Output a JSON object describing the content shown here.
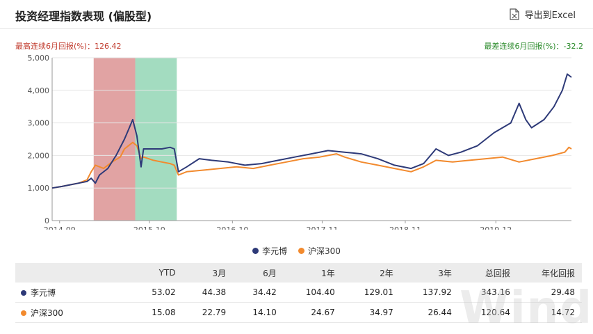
{
  "header": {
    "title": "投资经理指数表现 (偏股型)",
    "export_label": "导出到Excel"
  },
  "annotations": {
    "best": "最高连续6月回报(%)：126.42",
    "worst": "最差连续6月回报(%)：-32.2"
  },
  "colors": {
    "series1": "#2e3a78",
    "series2": "#f28a2e",
    "best_band": "#e1a3a3",
    "worst_band": "#a3dcc0",
    "best_text": "#c0392b",
    "worst_text": "#2a8a2a"
  },
  "chart_data": {
    "type": "line",
    "ylim": [
      0,
      5000
    ],
    "y_ticks": [
      "0",
      "1,000",
      "2,000",
      "3,000",
      "4,000",
      "5,000"
    ],
    "x_ticks": [
      "2014-09",
      "2015-10",
      "2016-10",
      "2017-11",
      "2018-11",
      "2019-12"
    ],
    "x_tick_dates": [
      2014.67,
      2015.75,
      2016.75,
      2017.83,
      2018.83,
      2019.92
    ],
    "x_range": [
      2014.58,
      2020.83
    ],
    "bands": [
      {
        "from": 2015.08,
        "to": 2015.58,
        "kind": "best"
      },
      {
        "from": 2015.58,
        "to": 2016.08,
        "kind": "worst"
      }
    ],
    "series": [
      {
        "name": "李元博",
        "points": [
          [
            2014.58,
            1000
          ],
          [
            2014.7,
            1050
          ],
          [
            2014.8,
            1100
          ],
          [
            2014.9,
            1150
          ],
          [
            2015.0,
            1200
          ],
          [
            2015.05,
            1300
          ],
          [
            2015.1,
            1150
          ],
          [
            2015.15,
            1400
          ],
          [
            2015.25,
            1600
          ],
          [
            2015.35,
            2000
          ],
          [
            2015.45,
            2500
          ],
          [
            2015.5,
            2800
          ],
          [
            2015.55,
            3100
          ],
          [
            2015.6,
            2600
          ],
          [
            2015.65,
            1650
          ],
          [
            2015.68,
            2200
          ],
          [
            2015.75,
            2200
          ],
          [
            2015.9,
            2200
          ],
          [
            2016.0,
            2250
          ],
          [
            2016.05,
            2200
          ],
          [
            2016.1,
            1500
          ],
          [
            2016.2,
            1650
          ],
          [
            2016.35,
            1900
          ],
          [
            2016.5,
            1850
          ],
          [
            2016.7,
            1800
          ],
          [
            2016.9,
            1700
          ],
          [
            2017.1,
            1750
          ],
          [
            2017.3,
            1850
          ],
          [
            2017.5,
            1950
          ],
          [
            2017.7,
            2050
          ],
          [
            2017.9,
            2150
          ],
          [
            2018.1,
            2100
          ],
          [
            2018.3,
            2050
          ],
          [
            2018.5,
            1900
          ],
          [
            2018.7,
            1700
          ],
          [
            2018.9,
            1600
          ],
          [
            2019.05,
            1750
          ],
          [
            2019.2,
            2200
          ],
          [
            2019.35,
            2000
          ],
          [
            2019.5,
            2100
          ],
          [
            2019.7,
            2300
          ],
          [
            2019.9,
            2700
          ],
          [
            2020.1,
            3000
          ],
          [
            2020.2,
            3600
          ],
          [
            2020.28,
            3100
          ],
          [
            2020.35,
            2850
          ],
          [
            2020.5,
            3100
          ],
          [
            2020.62,
            3500
          ],
          [
            2020.72,
            4000
          ],
          [
            2020.78,
            4500
          ],
          [
            2020.83,
            4400
          ]
        ]
      },
      {
        "name": "沪深300",
        "points": [
          [
            2014.58,
            1000
          ],
          [
            2014.7,
            1050
          ],
          [
            2014.8,
            1100
          ],
          [
            2014.9,
            1150
          ],
          [
            2015.0,
            1250
          ],
          [
            2015.05,
            1500
          ],
          [
            2015.1,
            1700
          ],
          [
            2015.2,
            1600
          ],
          [
            2015.3,
            1800
          ],
          [
            2015.4,
            1950
          ],
          [
            2015.45,
            2200
          ],
          [
            2015.55,
            2400
          ],
          [
            2015.6,
            2300
          ],
          [
            2015.65,
            1900
          ],
          [
            2015.68,
            1950
          ],
          [
            2015.8,
            1850
          ],
          [
            2015.9,
            1800
          ],
          [
            2016.0,
            1750
          ],
          [
            2016.05,
            1700
          ],
          [
            2016.1,
            1400
          ],
          [
            2016.2,
            1500
          ],
          [
            2016.4,
            1550
          ],
          [
            2016.6,
            1600
          ],
          [
            2016.8,
            1650
          ],
          [
            2017.0,
            1600
          ],
          [
            2017.2,
            1700
          ],
          [
            2017.4,
            1800
          ],
          [
            2017.6,
            1900
          ],
          [
            2017.8,
            1950
          ],
          [
            2018.0,
            2050
          ],
          [
            2018.1,
            1950
          ],
          [
            2018.3,
            1800
          ],
          [
            2018.5,
            1700
          ],
          [
            2018.7,
            1600
          ],
          [
            2018.9,
            1500
          ],
          [
            2019.05,
            1650
          ],
          [
            2019.2,
            1850
          ],
          [
            2019.4,
            1800
          ],
          [
            2019.6,
            1850
          ],
          [
            2019.8,
            1900
          ],
          [
            2020.0,
            1950
          ],
          [
            2020.2,
            1800
          ],
          [
            2020.4,
            1900
          ],
          [
            2020.6,
            2000
          ],
          [
            2020.75,
            2100
          ],
          [
            2020.8,
            2250
          ],
          [
            2020.83,
            2200
          ]
        ]
      }
    ]
  },
  "table": {
    "headers": [
      "",
      "YTD",
      "3月",
      "6月",
      "1年",
      "2年",
      "3年",
      "总回报",
      "年化回报"
    ],
    "rows": [
      {
        "name": "李元博",
        "values": [
          "53.02",
          "44.38",
          "34.42",
          "104.40",
          "129.01",
          "137.92",
          "343.16",
          "29.48"
        ]
      },
      {
        "name": "沪深300",
        "values": [
          "15.08",
          "22.79",
          "14.10",
          "24.67",
          "34.97",
          "26.44",
          "120.64",
          "14.72"
        ]
      }
    ]
  },
  "watermark": "Wind"
}
